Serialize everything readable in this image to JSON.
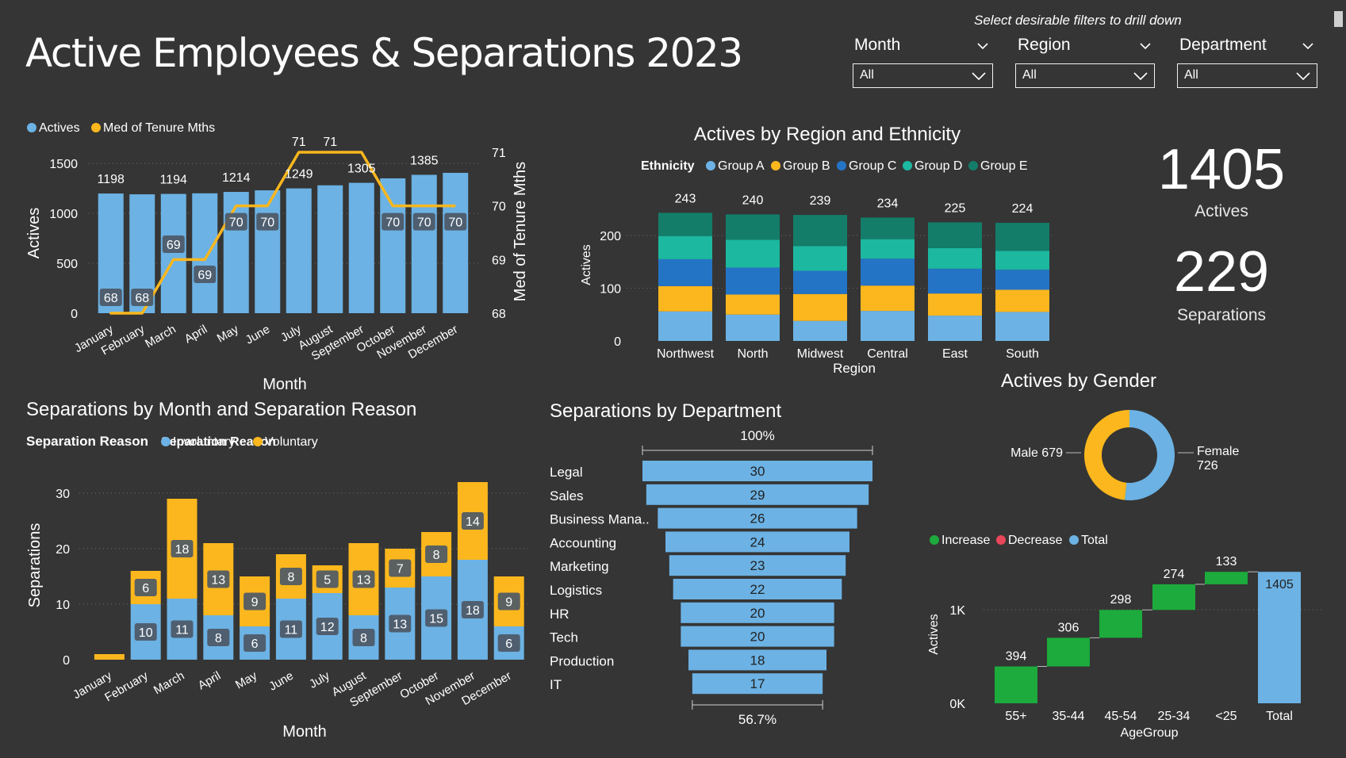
{
  "header": {
    "title": "Active Employees & Separations 2023",
    "filter_hint": "Select desirable filters to drill down"
  },
  "slicers": [
    {
      "label": "Month",
      "value": "All"
    },
    {
      "label": "Region",
      "value": "All"
    },
    {
      "label": "Department",
      "value": "All"
    }
  ],
  "kpis": {
    "actives_value": "1405",
    "actives_label": "Actives",
    "separations_value": "229",
    "separations_label": "Separations"
  },
  "colors": {
    "background": "#353535",
    "blue": "#6cb2e4",
    "gold": "#fbb71d",
    "group_a": "#6cb2e4",
    "group_b": "#fbb71d",
    "group_c": "#2474c6",
    "group_d": "#1cb8a0",
    "group_e": "#137d69",
    "increase": "#1cab3c",
    "decrease": "#e8465a",
    "total": "#6cb2e4",
    "label_box": "#4d5866"
  },
  "chart_data": [
    {
      "id": "actives-tenure",
      "type": "bar",
      "legend": [
        "Actives",
        "Med of Tenure Mths"
      ],
      "categories": [
        "January",
        "February",
        "March",
        "April",
        "May",
        "June",
        "July",
        "August",
        "September",
        "October",
        "November",
        "December"
      ],
      "series": [
        {
          "name": "Actives",
          "values": [
            1198,
            1190,
            1194,
            1200,
            1214,
            1230,
            1249,
            1280,
            1305,
            1350,
            1385,
            1405
          ],
          "labels": [
            "1198",
            "",
            "1194",
            "",
            "1214",
            "",
            "1249",
            "",
            "1305",
            "",
            "1385",
            ""
          ]
        },
        {
          "name": "Med of Tenure Mths",
          "values": [
            68,
            68,
            69,
            69,
            70,
            70,
            71,
            71,
            71,
            70,
            70,
            70
          ],
          "labels": [
            "68",
            "68",
            "69",
            "69",
            "70",
            "70",
            "71",
            "71",
            "",
            "70",
            "70",
            "70"
          ]
        }
      ],
      "xlabel": "Month",
      "ylabel": "Actives",
      "y2label": "Med of Tenure Mths",
      "ylim": [
        0,
        1500
      ],
      "yticks": [
        0,
        500,
        1000,
        1500
      ],
      "y2lim": [
        68,
        71
      ],
      "y2ticks": [
        68,
        69,
        70,
        71
      ],
      "legend_position": "top-left"
    },
    {
      "id": "actives-region-ethnicity",
      "type": "bar",
      "stacked": true,
      "title": "Actives by Region and Ethnicity",
      "legend_title": "Ethnicity",
      "categories": [
        "Northwest",
        "North",
        "Midwest",
        "Central",
        "East",
        "South"
      ],
      "totals": [
        243,
        240,
        239,
        234,
        225,
        224
      ],
      "series": [
        {
          "name": "Group A",
          "values": [
            56,
            50,
            38,
            57,
            48,
            55
          ]
        },
        {
          "name": "Group B",
          "values": [
            48,
            38,
            51,
            48,
            42,
            42
          ]
        },
        {
          "name": "Group C",
          "values": [
            51,
            51,
            44,
            51,
            47,
            38
          ]
        },
        {
          "name": "Group D",
          "values": [
            44,
            53,
            47,
            37,
            39,
            36
          ]
        },
        {
          "name": "Group E",
          "values": [
            44,
            48,
            59,
            41,
            49,
            53
          ]
        }
      ],
      "xlabel": "Region",
      "ylabel": "Actives",
      "ylim": [
        0,
        250
      ],
      "yticks": [
        0,
        100,
        200
      ],
      "legend_position": "top"
    },
    {
      "id": "separations-month-reason",
      "type": "bar",
      "stacked": true,
      "title": "Separations by Month and Separation Reason",
      "legend_title": "Separation Reason",
      "categories": [
        "January",
        "February",
        "March",
        "April",
        "May",
        "June",
        "July",
        "August",
        "September",
        "October",
        "November",
        "December"
      ],
      "series": [
        {
          "name": "Involuntary",
          "values": [
            0,
            10,
            11,
            8,
            6,
            11,
            12,
            8,
            13,
            15,
            18,
            6
          ],
          "labels": [
            "",
            "10",
            "11",
            "8",
            "6",
            "11",
            "12",
            "8",
            "13",
            "15",
            "18",
            "6"
          ]
        },
        {
          "name": "Voluntary",
          "values": [
            1,
            6,
            18,
            13,
            9,
            8,
            5,
            13,
            7,
            8,
            14,
            9
          ],
          "labels": [
            "",
            "6",
            "18",
            "13",
            "9",
            "8",
            "5",
            "13",
            "7",
            "8",
            "14",
            "9"
          ]
        }
      ],
      "xlabel": "Month",
      "ylabel": "Separations",
      "ylim": [
        0,
        33
      ],
      "yticks": [
        0,
        10,
        20,
        30
      ],
      "legend_position": "top-left"
    },
    {
      "id": "separations-department",
      "type": "bar",
      "orientation": "funnel",
      "title": "Separations by Department",
      "categories": [
        "Legal",
        "Sales",
        "Business Mana..",
        "Accounting",
        "Marketing",
        "Logistics",
        "HR",
        "Tech",
        "Production",
        "IT"
      ],
      "values": [
        30,
        29,
        26,
        24,
        23,
        22,
        20,
        20,
        18,
        17
      ],
      "top_percent": "100%",
      "bottom_percent": "56.7%"
    },
    {
      "id": "actives-gender",
      "type": "pie",
      "donut": true,
      "title": "Actives by Gender",
      "categories": [
        "Male",
        "Female"
      ],
      "values": [
        679,
        726
      ],
      "labels": [
        "Male 679",
        "Female",
        "726"
      ]
    },
    {
      "id": "actives-agegroup",
      "type": "bar",
      "waterfall": true,
      "legend": [
        "Increase",
        "Decrease",
        "Total"
      ],
      "categories": [
        "55+",
        "35-44",
        "45-54",
        "25-34",
        "<25",
        "Total"
      ],
      "values": [
        394,
        306,
        298,
        274,
        133,
        1405
      ],
      "labels": [
        "394",
        "306",
        "298",
        "274",
        "133",
        "1405"
      ],
      "xlabel": "AgeGroup",
      "ylabel": "Actives",
      "yticks": [
        "0K",
        "1K"
      ],
      "ylim": [
        0,
        1450
      ]
    }
  ]
}
